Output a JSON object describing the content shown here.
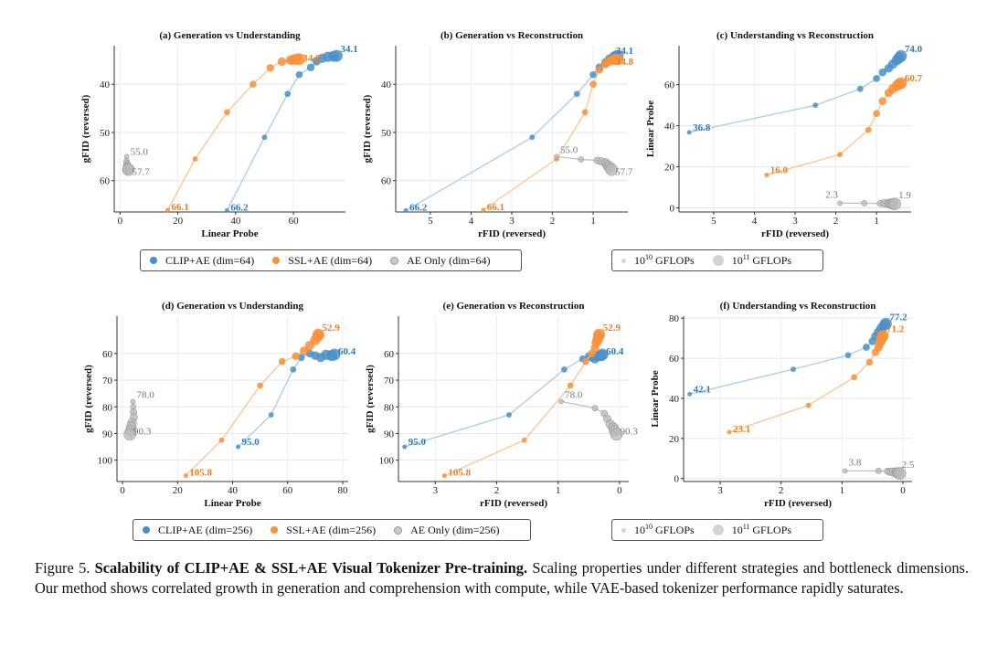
{
  "colors": {
    "clip": "#4a90c8",
    "ssl": "#f7913a",
    "ae": "#b8b8b8",
    "clip_light": "#a9cde8",
    "ssl_light": "#fcc48f",
    "ae_light": "#bfbfbf"
  },
  "chart_data": [
    {
      "id": "a",
      "type": "scatter",
      "title": "(a) Generation vs Understanding",
      "xlabel": "Linear Probe",
      "ylabel": "gFID (reversed)",
      "xlim": [
        -2,
        78
      ],
      "ylim": [
        66.5,
        32
      ],
      "y_reversed": true,
      "xticks": [
        0,
        20,
        40,
        60
      ],
      "yticks": [
        40,
        50,
        60
      ],
      "grid": true,
      "series": [
        {
          "key": "clip",
          "x": [
            37,
            50,
            58,
            62,
            66,
            68,
            70,
            72,
            74,
            75
          ],
          "y": [
            66.2,
            51,
            42,
            38,
            36.5,
            35.2,
            34.6,
            34.3,
            34.2,
            34.1
          ]
        },
        {
          "key": "ssl",
          "x": [
            16.5,
            26,
            37,
            46,
            52,
            56,
            59,
            60,
            61,
            62
          ],
          "y": [
            66.1,
            55.5,
            45.8,
            40,
            36.6,
            35.3,
            35,
            34.9,
            34.8,
            34.8
          ]
        },
        {
          "key": "ae",
          "x": [
            2.3,
            2.3,
            2.4,
            2.5,
            2.6,
            2.7,
            2.8,
            2.9
          ],
          "y": [
            55,
            56,
            56.5,
            57,
            57.3,
            57.5,
            57.6,
            57.7
          ]
        }
      ],
      "labels": [
        {
          "key": "clip",
          "text": "34.1",
          "x": 75,
          "y": 34.1
        },
        {
          "key": "ssl",
          "text": "34.8",
          "x": 62,
          "y": 34.8
        },
        {
          "key": "ae",
          "text": "55.0",
          "x": 2.3,
          "y": 55
        },
        {
          "key": "ae",
          "text": "57.7",
          "x": 2.9,
          "y": 57.7
        },
        {
          "key": "ssl",
          "text": "66.1",
          "x": 16.5,
          "y": 66.1
        },
        {
          "key": "clip",
          "text": "66.2",
          "x": 37,
          "y": 66.2
        }
      ]
    },
    {
      "id": "b",
      "type": "scatter",
      "title": "(b) Generation vs Reconstruction",
      "xlabel": "rFID (reversed)",
      "ylabel": "gFID (reversed)",
      "xlim": [
        5.85,
        0.15
      ],
      "ylim": [
        66.5,
        32
      ],
      "y_reversed": true,
      "xticks": [
        5,
        4,
        3,
        2,
        1
      ],
      "yticks": [
        40,
        50,
        60
      ],
      "grid": true,
      "series": [
        {
          "key": "clip",
          "x": [
            5.6,
            2.5,
            1.4,
            1.0,
            0.85,
            0.7,
            0.6,
            0.5,
            0.45,
            0.4
          ],
          "y": [
            66.2,
            51,
            42,
            38,
            36.5,
            35.5,
            34.8,
            34.4,
            34.2,
            34.1
          ]
        },
        {
          "key": "ssl",
          "x": [
            3.7,
            1.9,
            1.2,
            1.0,
            0.85,
            0.7,
            0.6,
            0.5,
            0.45,
            0.4
          ],
          "y": [
            66.1,
            55.5,
            45.8,
            40,
            37,
            35.8,
            35.2,
            34.9,
            34.8,
            34.8
          ]
        },
        {
          "key": "ae",
          "x": [
            1.9,
            1.3,
            0.9,
            0.8,
            0.7,
            0.65,
            0.6,
            0.55
          ],
          "y": [
            55,
            55.6,
            55.8,
            56,
            56.3,
            56.8,
            57.2,
            57.7
          ]
        }
      ],
      "labels": [
        {
          "key": "clip",
          "text": "34.1",
          "x": 0.4,
          "y": 34.1
        },
        {
          "key": "ssl",
          "text": "34.8",
          "x": 0.4,
          "y": 34.8
        },
        {
          "key": "ae",
          "text": "55.0",
          "x": 1.9,
          "y": 55
        },
        {
          "key": "ae",
          "text": "57.7",
          "x": 0.55,
          "y": 57.7
        },
        {
          "key": "ssl",
          "text": "66.1",
          "x": 3.7,
          "y": 66.1
        },
        {
          "key": "clip",
          "text": "66.2",
          "x": 5.6,
          "y": 66.2
        }
      ]
    },
    {
      "id": "c",
      "type": "scatter",
      "title": "(c) Understanding vs Reconstruction",
      "xlabel": "rFID (reversed)",
      "ylabel": "Linear Probe",
      "xlim": [
        5.85,
        0.15
      ],
      "ylim": [
        -2,
        79
      ],
      "y_reversed": false,
      "xticks": [
        5,
        4,
        3,
        2,
        1
      ],
      "yticks": [
        0,
        20,
        40,
        60
      ],
      "grid": true,
      "series": [
        {
          "key": "clip",
          "x": [
            5.6,
            2.5,
            1.4,
            1.0,
            0.85,
            0.7,
            0.6,
            0.5,
            0.45,
            0.4
          ],
          "y": [
            36.8,
            50,
            58,
            63,
            66,
            68,
            70,
            72,
            73,
            74
          ]
        },
        {
          "key": "ssl",
          "x": [
            3.7,
            1.9,
            1.2,
            1.0,
            0.85,
            0.7,
            0.6,
            0.5,
            0.45,
            0.4
          ],
          "y": [
            16,
            26,
            38,
            46,
            52,
            56,
            58,
            59.5,
            60.3,
            60.7
          ]
        },
        {
          "key": "ae",
          "x": [
            1.9,
            1.3,
            0.9,
            0.8,
            0.7,
            0.65,
            0.6,
            0.55
          ],
          "y": [
            2.3,
            2.3,
            2.2,
            2.2,
            2.1,
            2.0,
            1.9,
            1.9
          ]
        }
      ],
      "labels": [
        {
          "key": "clip",
          "text": "74.0",
          "x": 0.4,
          "y": 74
        },
        {
          "key": "ssl",
          "text": "60.7",
          "x": 0.4,
          "y": 60.7
        },
        {
          "key": "clip",
          "text": "36.8",
          "x": 5.6,
          "y": 36.8
        },
        {
          "key": "ssl",
          "text": "16.0",
          "x": 3.7,
          "y": 16
        },
        {
          "key": "ae",
          "text": "2.3",
          "x": 1.9,
          "y": 2.3
        },
        {
          "key": "ae",
          "text": "1.9",
          "x": 0.55,
          "y": 1.9
        }
      ]
    },
    {
      "id": "d",
      "type": "scatter",
      "title": "(d) Generation vs Understanding",
      "xlabel": "Linear Probe",
      "ylabel": "gFID (reversed)",
      "xlim": [
        -2,
        82
      ],
      "ylim": [
        108,
        46
      ],
      "y_reversed": true,
      "xticks": [
        0,
        20,
        40,
        60,
        80
      ],
      "yticks": [
        60,
        70,
        80,
        90,
        100
      ],
      "grid": true,
      "series": [
        {
          "key": "clip",
          "x": [
            42,
            54,
            62,
            65,
            68,
            70,
            72,
            74,
            76,
            77
          ],
          "y": [
            95,
            83,
            66,
            61.5,
            60,
            60.8,
            61.5,
            60.5,
            60.8,
            60.4
          ]
        },
        {
          "key": "ssl",
          "x": [
            23,
            36,
            50,
            58,
            63,
            66,
            68,
            70,
            71,
            71.2
          ],
          "y": [
            105.8,
            92.5,
            72,
            63,
            61,
            59,
            57,
            55,
            53.5,
            52.9
          ]
        },
        {
          "key": "ae",
          "x": [
            3.8,
            3.9,
            4.0,
            4.1,
            3.5,
            3.2,
            3.0,
            2.7
          ],
          "y": [
            78,
            80,
            82,
            84,
            86,
            87.5,
            89,
            90.3
          ]
        }
      ],
      "labels": [
        {
          "key": "ssl",
          "text": "52.9",
          "x": 71.2,
          "y": 52.9
        },
        {
          "key": "clip",
          "text": "60.4",
          "x": 77,
          "y": 60.4
        },
        {
          "key": "ae",
          "text": "78.0",
          "x": 3.8,
          "y": 78
        },
        {
          "key": "ae",
          "text": "90.3",
          "x": 2.7,
          "y": 90.3
        },
        {
          "key": "clip",
          "text": "95.0",
          "x": 42,
          "y": 95
        },
        {
          "key": "ssl",
          "text": "105.8",
          "x": 23,
          "y": 105.8
        }
      ]
    },
    {
      "id": "e",
      "type": "scatter",
      "title": "(e) Generation vs Reconstruction",
      "xlabel": "rFID (reversed)",
      "ylabel": "gFID (reversed)",
      "xlim": [
        3.6,
        -0.15
      ],
      "ylim": [
        108,
        46
      ],
      "y_reversed": true,
      "xticks": [
        3,
        2,
        1,
        0
      ],
      "yticks": [
        60,
        70,
        80,
        90,
        100
      ],
      "grid": true,
      "series": [
        {
          "key": "clip",
          "x": [
            3.5,
            1.8,
            0.9,
            0.6,
            0.5,
            0.45,
            0.4,
            0.35,
            0.3,
            0.28
          ],
          "y": [
            95,
            83,
            66,
            62,
            61,
            61.5,
            62,
            61,
            60.8,
            60.4
          ]
        },
        {
          "key": "ssl",
          "x": [
            2.85,
            1.55,
            0.8,
            0.55,
            0.45,
            0.4,
            0.38,
            0.36,
            0.34,
            0.33
          ],
          "y": [
            105.8,
            92.5,
            72,
            63,
            60,
            58,
            56,
            55,
            53.5,
            52.9
          ]
        },
        {
          "key": "ae",
          "x": [
            0.95,
            0.4,
            0.25,
            0.2,
            0.15,
            0.1,
            0.08,
            0.05
          ],
          "y": [
            78,
            80.5,
            82.5,
            84.5,
            86.5,
            87.8,
            89,
            90.3
          ]
        }
      ],
      "labels": [
        {
          "key": "ssl",
          "text": "52.9",
          "x": 0.33,
          "y": 52.9
        },
        {
          "key": "clip",
          "text": "60.4",
          "x": 0.28,
          "y": 60.4
        },
        {
          "key": "ae",
          "text": "78.0",
          "x": 0.95,
          "y": 78
        },
        {
          "key": "ae",
          "text": "90.3",
          "x": 0.05,
          "y": 90.3
        },
        {
          "key": "clip",
          "text": "95.0",
          "x": 3.5,
          "y": 95
        },
        {
          "key": "ssl",
          "text": "105.8",
          "x": 2.85,
          "y": 105.8
        }
      ]
    },
    {
      "id": "f",
      "type": "scatter",
      "title": "(f) Understanding vs Reconstruction",
      "xlabel": "rFID (reversed)",
      "ylabel": "Linear Probe",
      "xlim": [
        3.6,
        -0.15
      ],
      "ylim": [
        -1.5,
        81
      ],
      "y_reversed": false,
      "xticks": [
        3,
        2,
        1,
        0
      ],
      "yticks": [
        0,
        20,
        40,
        60,
        80
      ],
      "grid": true,
      "series": [
        {
          "key": "clip",
          "x": [
            3.5,
            1.8,
            0.9,
            0.6,
            0.5,
            0.45,
            0.4,
            0.35,
            0.3,
            0.28
          ],
          "y": [
            42.1,
            54.5,
            61.5,
            65.5,
            68.5,
            71,
            73,
            75,
            76.5,
            77.2
          ]
        },
        {
          "key": "ssl",
          "x": [
            2.85,
            1.55,
            0.8,
            0.55,
            0.45,
            0.4,
            0.38,
            0.36,
            0.34,
            0.33
          ],
          "y": [
            23.1,
            36.5,
            50.5,
            58,
            63,
            65.5,
            67.5,
            69,
            70.5,
            71.2
          ]
        },
        {
          "key": "ae",
          "x": [
            0.95,
            0.4,
            0.25,
            0.2,
            0.15,
            0.1,
            0.08,
            0.05
          ],
          "y": [
            3.8,
            3.8,
            3.6,
            3.4,
            3.2,
            3.0,
            2.8,
            2.5
          ]
        }
      ],
      "labels": [
        {
          "key": "clip",
          "text": "77.2",
          "x": 0.28,
          "y": 77.2
        },
        {
          "key": "ssl",
          "text": "71.2",
          "x": 0.33,
          "y": 71.2
        },
        {
          "key": "clip",
          "text": "42.1",
          "x": 3.5,
          "y": 42.1
        },
        {
          "key": "ssl",
          "text": "23.1",
          "x": 2.85,
          "y": 23.1
        },
        {
          "key": "ae",
          "text": "3.8",
          "x": 0.95,
          "y": 3.8
        },
        {
          "key": "ae",
          "text": "2.5",
          "x": 0.05,
          "y": 2.5
        }
      ]
    }
  ],
  "legends": {
    "row1": {
      "clip": "CLIP+AE (dim=64)",
      "ssl": "SSL+AE (dim=64)",
      "ae": "AE Only (dim=64)"
    },
    "row2": {
      "clip": "CLIP+AE (dim=256)",
      "ssl": "SSL+AE (dim=256)",
      "ae": "AE Only (dim=256)"
    },
    "size": {
      "small_base": "10",
      "small_exp": "10",
      "large_base": "10",
      "large_exp": "11",
      "unit": "GFLOPs"
    }
  },
  "caption": {
    "label": "Figure 5.",
    "bold": "Scalability of CLIP+AE & SSL+AE Visual Tokenizer Pre-training.",
    "text": "Scaling properties under different strategies and bottleneck dimensions. Our method shows correlated growth in generation and comprehension with compute, while VAE-based tokenizer performance rapidly saturates."
  }
}
